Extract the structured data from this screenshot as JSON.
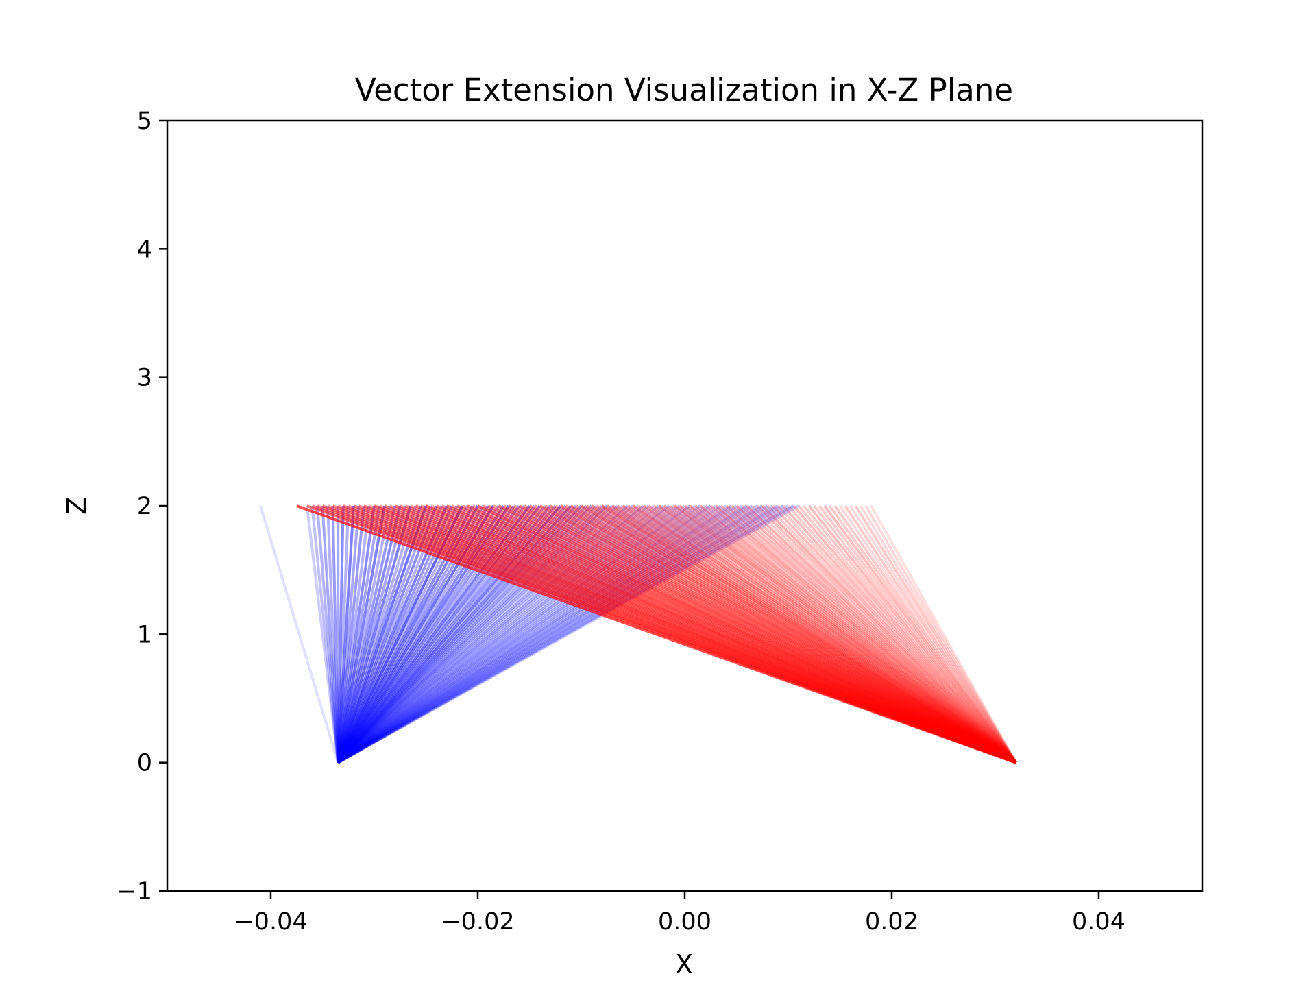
{
  "chart_data": {
    "type": "line",
    "title": "Vector Extension Visualization in X-Z Plane",
    "xlabel": "X",
    "ylabel": "Z",
    "xlim": [
      -0.05,
      0.05
    ],
    "ylim": [
      -1,
      5
    ],
    "x_ticks": [
      -0.04,
      -0.02,
      0.0,
      0.02,
      0.04
    ],
    "x_tick_labels": [
      "−0.04",
      "−0.02",
      "0.00",
      "0.02",
      "0.04"
    ],
    "y_ticks": [
      -1,
      0,
      1,
      2,
      3,
      4,
      5
    ],
    "y_tick_labels": [
      "−1",
      "0",
      "1",
      "2",
      "3",
      "4",
      "5"
    ],
    "grid": false,
    "series": [
      {
        "color": "#0000ff",
        "origin": [
          -0.0335,
          0.0
        ],
        "end_z": 2.0,
        "end_x": [
          -0.041,
          -0.0365,
          -0.036,
          -0.0355,
          -0.035,
          -0.0345,
          -0.034,
          -0.0335,
          -0.033,
          -0.0325,
          -0.032,
          -0.0315,
          -0.031,
          -0.0305,
          -0.03,
          -0.0295,
          -0.029,
          -0.0285,
          -0.028,
          -0.0275,
          -0.027,
          -0.0265,
          -0.026,
          -0.0255,
          -0.025,
          -0.0245,
          -0.024,
          -0.0235,
          -0.023,
          -0.0225,
          -0.022,
          -0.0215,
          -0.021,
          -0.0205,
          -0.02,
          -0.0195,
          -0.019,
          -0.0185,
          -0.018,
          -0.0175,
          -0.017,
          -0.0165,
          -0.016,
          -0.0155,
          -0.015,
          -0.0145,
          -0.014,
          -0.0135,
          -0.013,
          -0.0125,
          -0.012,
          -0.0115,
          -0.011,
          -0.0105,
          -0.01,
          -0.0095,
          -0.009,
          -0.0085,
          -0.008,
          -0.0075,
          -0.007,
          -0.0065,
          -0.006,
          -0.0055,
          -0.005,
          -0.0045,
          -0.004,
          -0.0035,
          -0.003,
          -0.0025,
          -0.002,
          -0.0015,
          -0.001,
          -0.0005,
          0.0,
          0.0005,
          0.001,
          0.0015,
          0.002,
          0.0025,
          0.003,
          0.0035,
          0.004,
          0.0045,
          0.005,
          0.0055,
          0.006,
          0.0065,
          0.007,
          0.0075,
          0.008,
          0.0085,
          0.009,
          0.0095,
          0.01,
          0.0105,
          0.011
        ],
        "alpha": [
          0.12,
          0.2,
          0.25,
          0.3,
          0.35,
          0.3,
          0.4,
          0.35,
          0.45,
          0.3,
          0.5,
          0.35,
          0.4,
          0.3,
          0.45,
          0.35,
          0.5,
          0.3,
          0.4,
          0.45,
          0.35,
          0.5,
          0.3,
          0.4,
          0.55,
          0.35,
          0.45,
          0.3,
          0.5,
          0.4,
          0.35,
          0.6,
          0.3,
          0.45,
          0.5,
          0.35,
          0.4,
          0.55,
          0.3,
          0.45,
          0.5,
          0.35,
          0.4,
          0.3,
          0.5,
          0.35,
          0.45,
          0.3,
          0.4,
          0.35,
          0.5,
          0.3,
          0.45,
          0.35,
          0.4,
          0.3,
          0.35,
          0.25,
          0.3,
          0.35,
          0.25,
          0.3,
          0.2,
          0.3,
          0.25,
          0.2,
          0.3,
          0.25,
          0.2,
          0.25,
          0.2,
          0.3,
          0.2,
          0.25,
          0.2,
          0.3,
          0.2,
          0.25,
          0.2,
          0.3,
          0.2,
          0.25,
          0.2,
          0.3,
          0.25,
          0.2,
          0.3,
          0.25,
          0.2,
          0.3,
          0.25,
          0.2,
          0.3,
          0.25,
          0.2,
          0.3,
          0.2
        ]
      },
      {
        "color": "#ff0000",
        "origin": [
          0.032,
          0.0
        ],
        "end_z": 2.0,
        "end_x": [
          -0.0375,
          -0.0365,
          -0.036,
          -0.0355,
          -0.035,
          -0.0345,
          -0.034,
          -0.0335,
          -0.033,
          -0.0325,
          -0.032,
          -0.0315,
          -0.031,
          -0.0305,
          -0.03,
          -0.0295,
          -0.029,
          -0.0285,
          -0.028,
          -0.0275,
          -0.027,
          -0.0265,
          -0.026,
          -0.0255,
          -0.025,
          -0.0245,
          -0.024,
          -0.0235,
          -0.023,
          -0.0225,
          -0.022,
          -0.0215,
          -0.021,
          -0.0205,
          -0.02,
          -0.0195,
          -0.019,
          -0.0185,
          -0.018,
          -0.0175,
          -0.017,
          -0.0165,
          -0.016,
          -0.0155,
          -0.015,
          -0.0145,
          -0.014,
          -0.0135,
          -0.013,
          -0.0125,
          -0.012,
          -0.0115,
          -0.011,
          -0.0105,
          -0.01,
          -0.0095,
          -0.009,
          -0.0085,
          -0.008,
          -0.0075,
          -0.007,
          -0.0065,
          -0.006,
          -0.0055,
          -0.005,
          -0.0045,
          -0.004,
          -0.0035,
          -0.003,
          -0.0025,
          -0.002,
          -0.0015,
          -0.001,
          -0.0005,
          0.0,
          0.0005,
          0.001,
          0.0015,
          0.002,
          0.0025,
          0.003,
          0.0035,
          0.004,
          0.0045,
          0.005,
          0.0055,
          0.006,
          0.0065,
          0.007,
          0.0075,
          0.008,
          0.0085,
          0.009,
          0.0095,
          0.01,
          0.0105,
          0.011,
          0.0115,
          0.012,
          0.0125,
          0.013,
          0.0135,
          0.014,
          0.0145,
          0.015,
          0.0155,
          0.016,
          0.0165,
          0.017,
          0.0175,
          0.018
        ],
        "alpha": [
          0.7,
          0.5,
          0.45,
          0.4,
          0.5,
          0.35,
          0.45,
          0.4,
          0.5,
          0.35,
          0.45,
          0.4,
          0.5,
          0.35,
          0.55,
          0.4,
          0.45,
          0.35,
          0.5,
          0.4,
          0.45,
          0.35,
          0.5,
          0.4,
          0.55,
          0.35,
          0.45,
          0.4,
          0.5,
          0.35,
          0.45,
          0.4,
          0.5,
          0.35,
          0.55,
          0.4,
          0.45,
          0.35,
          0.5,
          0.4,
          0.45,
          0.35,
          0.5,
          0.4,
          0.45,
          0.35,
          0.5,
          0.4,
          0.45,
          0.35,
          0.5,
          0.4,
          0.45,
          0.35,
          0.5,
          0.4,
          0.45,
          0.35,
          0.5,
          0.4,
          0.45,
          0.35,
          0.4,
          0.35,
          0.45,
          0.3,
          0.4,
          0.35,
          0.3,
          0.4,
          0.35,
          0.3,
          0.4,
          0.35,
          0.3,
          0.35,
          0.3,
          0.35,
          0.25,
          0.3,
          0.35,
          0.25,
          0.3,
          0.25,
          0.3,
          0.25,
          0.3,
          0.2,
          0.25,
          0.3,
          0.2,
          0.25,
          0.2,
          0.25,
          0.2,
          0.25,
          0.2,
          0.2,
          0.25,
          0.2,
          0.2,
          0.25,
          0.2,
          0.2,
          0.15,
          0.2,
          0.15,
          0.2,
          0.15,
          0.15,
          0.12
        ]
      }
    ]
  }
}
